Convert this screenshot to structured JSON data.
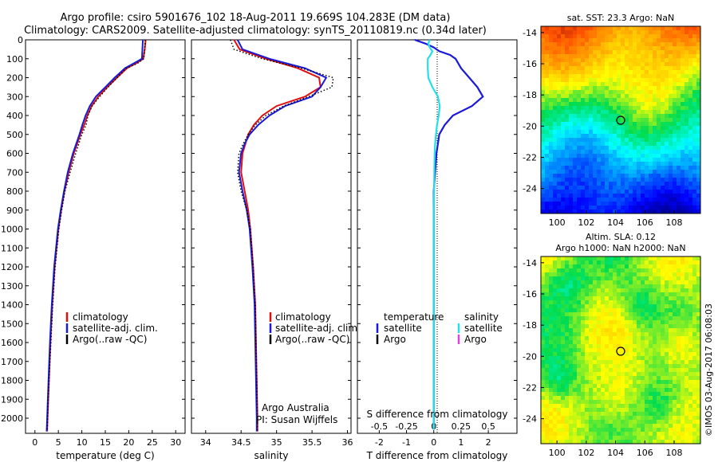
{
  "title": {
    "line1": "Argo profile: csiro 5901676_102 18-Aug-2011 19.669S 104.283E (DM data)",
    "line2": "Climatology: CARS2009. Satellite-adjusted climatology: synTS_20110819.nc (0.34d later)"
  },
  "colors": {
    "climatology": "#e01010",
    "satellite": "#1a1ad8",
    "argo": "#000000",
    "salinity_satellite": "#22e0e8",
    "salinity_argo": "#e040e0"
  },
  "chart_data": [
    {
      "type": "line",
      "panel": "temperature",
      "xlabel": "temperature (deg C)",
      "xlim": [
        -2,
        32
      ],
      "xticks": [
        "0",
        "5",
        "10",
        "15",
        "20",
        "25",
        "30"
      ],
      "ylim": [
        2080,
        0
      ],
      "yticks": [
        "0",
        "100",
        "200",
        "300",
        "400",
        "500",
        "600",
        "700",
        "800",
        "900",
        "1000",
        "1100",
        "1200",
        "1300",
        "1400",
        "1500",
        "1600",
        "1700",
        "1800",
        "1900",
        "2000"
      ],
      "y": [
        0,
        50,
        100,
        125,
        150,
        200,
        250,
        300,
        350,
        400,
        450,
        500,
        600,
        700,
        800,
        900,
        1000,
        1200,
        1400,
        1600,
        1800,
        2000,
        2070
      ],
      "series": [
        {
          "name": "climatology",
          "style": "solid",
          "values": [
            23.6,
            23.4,
            23.1,
            21.5,
            19.6,
            17.5,
            15.4,
            13.5,
            12.1,
            11.2,
            10.5,
            9.7,
            8.3,
            7.2,
            6.3,
            5.6,
            5.0,
            4.2,
            3.7,
            3.3,
            3.0,
            2.7,
            2.6
          ]
        },
        {
          "name": "satellite-adj. clim.",
          "style": "solid",
          "values": [
            23.0,
            22.9,
            22.8,
            21.0,
            19.2,
            17.0,
            15.0,
            13.0,
            11.7,
            10.8,
            10.1,
            9.5,
            8.1,
            7.0,
            6.2,
            5.5,
            4.9,
            4.1,
            3.6,
            3.2,
            2.9,
            2.6,
            2.5
          ]
        },
        {
          "name": "Argo(..raw -QC)",
          "style": "dotted",
          "values": [
            23.5,
            23.4,
            23.2,
            21.8,
            19.5,
            17.5,
            15.6,
            13.8,
            12.2,
            11.3,
            10.9,
            10.0,
            8.7,
            7.5,
            6.4,
            5.7,
            5.1,
            4.3,
            3.8,
            3.4,
            3.0,
            2.7,
            2.6
          ]
        }
      ]
    },
    {
      "type": "line",
      "panel": "salinity",
      "xlabel": "salinity",
      "xlim": [
        33.8,
        36.05
      ],
      "xticks": [
        "34",
        "34.5",
        "35",
        "35.5",
        "36"
      ],
      "ylim": [
        2080,
        0
      ],
      "y": [
        0,
        50,
        100,
        150,
        200,
        250,
        300,
        350,
        400,
        450,
        500,
        550,
        600,
        700,
        800,
        900,
        1000,
        1200,
        1400,
        1600,
        1800,
        2000,
        2070
      ],
      "series": [
        {
          "name": "climatology",
          "style": "solid",
          "values": [
            34.4,
            34.48,
            34.85,
            35.3,
            35.6,
            35.62,
            35.4,
            35.0,
            34.8,
            34.68,
            34.6,
            34.56,
            34.52,
            34.5,
            34.55,
            34.6,
            34.63,
            34.67,
            34.7,
            34.71,
            34.72,
            34.73,
            34.73
          ]
        },
        {
          "name": "satellite-adj. clim.",
          "style": "solid",
          "values": [
            34.45,
            34.52,
            34.9,
            35.4,
            35.7,
            35.62,
            35.5,
            35.12,
            34.9,
            34.74,
            34.62,
            34.55,
            34.5,
            34.47,
            34.52,
            34.58,
            34.62,
            34.66,
            34.69,
            34.7,
            34.71,
            34.72,
            34.72
          ]
        },
        {
          "name": "Argo(..raw -QC)",
          "style": "dotted",
          "values": [
            34.35,
            34.4,
            34.8,
            35.35,
            35.8,
            35.78,
            35.45,
            35.1,
            34.85,
            34.7,
            34.6,
            34.53,
            34.47,
            34.45,
            34.5,
            34.58,
            34.63,
            34.67,
            34.7,
            34.71,
            34.72,
            34.73,
            34.73
          ]
        }
      ]
    },
    {
      "type": "line",
      "panel": "difference",
      "xlabel": "T difference from climatology",
      "xlabel_top": "S difference from climatology",
      "xlim": [
        -2.8,
        3.05
      ],
      "xticks": [
        "-2",
        "-1",
        "0",
        "1",
        "2"
      ],
      "xticks_top": [
        "-0.5",
        "-0.25",
        "0",
        "0.25",
        "0.5"
      ],
      "xticks_top_pos_T": [
        -2,
        -1,
        0,
        1,
        2
      ],
      "ylim": [
        2080,
        0
      ],
      "y": [
        0,
        20,
        40,
        60,
        80,
        100,
        150,
        200,
        250,
        300,
        350,
        400,
        450,
        500,
        550,
        600,
        700,
        800,
        900,
        1000,
        1200,
        1400,
        1600,
        1800,
        2000,
        2060
      ],
      "series": [
        {
          "name": "temperature satellite",
          "style": "solid",
          "values": [
            -0.7,
            -0.3,
            0.0,
            0.2,
            0.6,
            0.8,
            1.0,
            1.3,
            1.6,
            1.8,
            1.4,
            0.7,
            0.4,
            0.2,
            0.15,
            0.1,
            0.05,
            0.0,
            0.0,
            0.0,
            0.0,
            0.0,
            0.0,
            0.0,
            0.0,
            0.0
          ]
        },
        {
          "name": "salinity satellite",
          "style": "solid",
          "values": [
            -0.15,
            -0.2,
            -0.15,
            -0.05,
            -0.12,
            -0.22,
            -0.22,
            -0.2,
            -0.05,
            0.15,
            0.22,
            0.18,
            0.12,
            0.08,
            0.05,
            0.03,
            0.02,
            0.01,
            0.0,
            0.0,
            0.0,
            0.0,
            0.0,
            0.0,
            0.0,
            0.0
          ]
        }
      ],
      "legend": {
        "temperature_header": "temperature",
        "salinity_header": "salinity",
        "t_satellite": "satellite",
        "t_argo": "Argo",
        "s_satellite": "satellite",
        "s_argo": "Argo"
      }
    },
    {
      "type": "heatmap",
      "panel": "sst",
      "title": "sat. SST: 23.3 Argo: NaN",
      "xticks": [
        "100",
        "102",
        "104",
        "106",
        "108"
      ],
      "yticks": [
        "-14",
        "-16",
        "-18",
        "-20",
        "-22",
        "-24"
      ],
      "xlim": [
        98.9,
        109.8
      ],
      "ylim": [
        -25.6,
        -13.6
      ],
      "marker": {
        "lon": 104.283,
        "lat": -19.669
      }
    },
    {
      "type": "heatmap",
      "panel": "sla",
      "title_line1": "Altim. SLA: 0.12",
      "title_line2": "Argo h1000: NaN h2000: NaN",
      "xticks": [
        "100",
        "102",
        "104",
        "106",
        "108"
      ],
      "yticks": [
        "-14",
        "-16",
        "-18",
        "-20",
        "-22",
        "-24"
      ],
      "xlim": [
        98.9,
        109.8
      ],
      "ylim": [
        -25.6,
        -13.6
      ],
      "marker": {
        "lon": 104.283,
        "lat": -19.669
      }
    }
  ],
  "legend": {
    "climatology": "climatology",
    "satellite": "satellite-adj. clim.",
    "argo": "Argo(..raw -QC)"
  },
  "credits": {
    "line1": "Argo Australia",
    "line2": "PI: Susan Wijffels",
    "stamp": "©IMOS 03-Aug-2017 06:08:03"
  }
}
